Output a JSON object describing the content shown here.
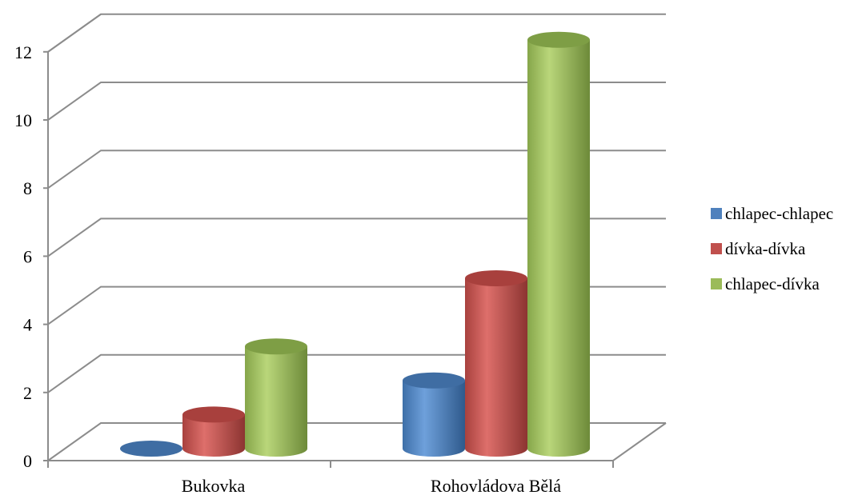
{
  "chart_data": {
    "type": "bar",
    "style": "3d-cylinder",
    "categories": [
      "Bukovka",
      "Rohovládova Bělá"
    ],
    "series": [
      {
        "name": "chlapec-chlapec",
        "color": "#4f81bd",
        "values": [
          0,
          2
        ]
      },
      {
        "name": "dívka-dívka",
        "color": "#c0504d",
        "values": [
          1,
          5
        ]
      },
      {
        "name": "chlapec-dívka",
        "color": "#9bbb59",
        "values": [
          3,
          12
        ]
      }
    ],
    "ylim": [
      0,
      12
    ],
    "yticks": [
      0,
      2,
      4,
      6,
      8,
      10,
      12
    ],
    "grid": true,
    "legend": "right"
  }
}
